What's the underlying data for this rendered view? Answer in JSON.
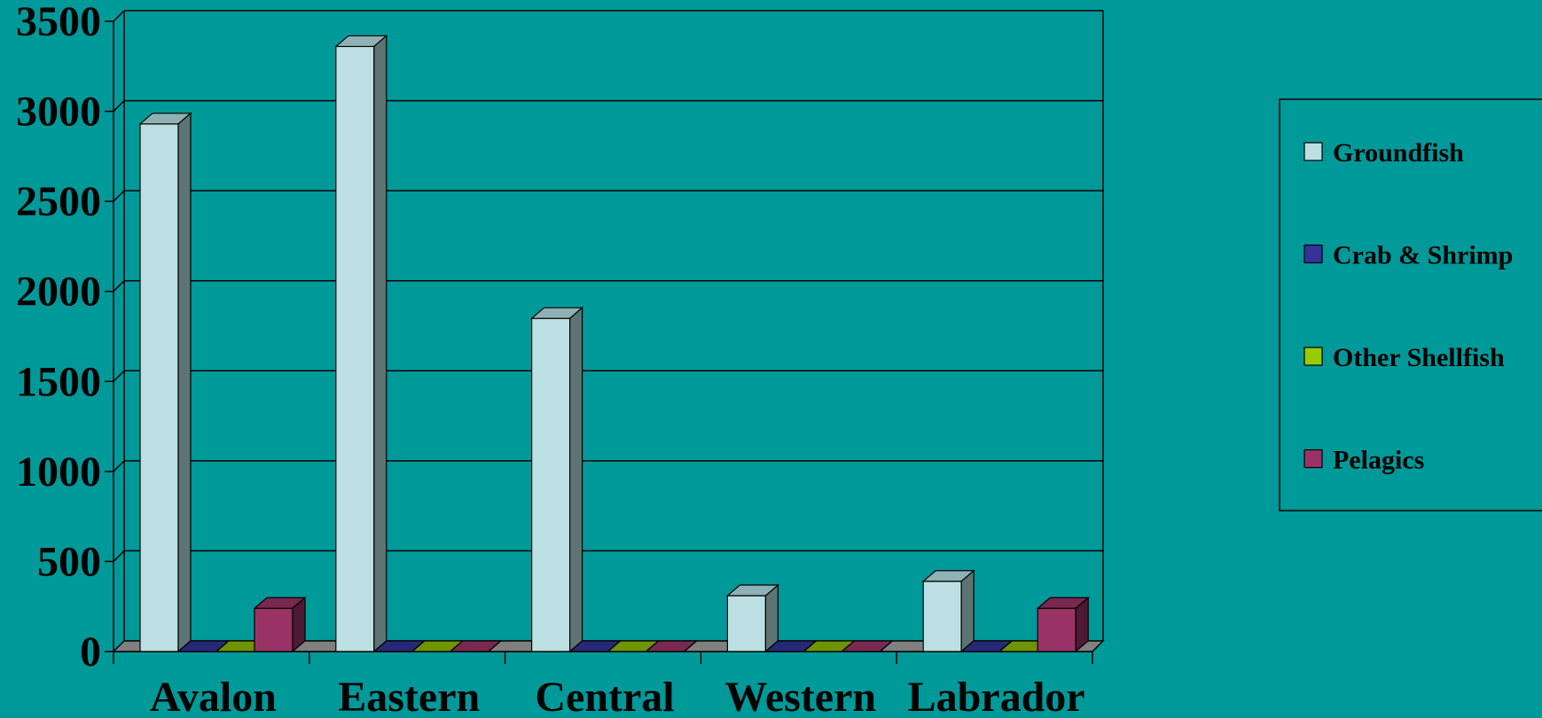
{
  "chart_data": {
    "type": "bar",
    "style": "3d-clustered-column",
    "categories": [
      "Avalon",
      "Eastern",
      "Central",
      "Western",
      "Labrador"
    ],
    "series": [
      {
        "name": "Groundfish",
        "values": [
          2930,
          3360,
          1850,
          310,
          390
        ],
        "color": "#BCE0E2",
        "side_color": "#5E7373",
        "top_color": "#8FB1B3"
      },
      {
        "name": "Crab & Shrimp",
        "values": [
          0,
          0,
          0,
          0,
          0
        ],
        "color": "#333399",
        "side_color": "#1A1A4D",
        "top_color": "#282878"
      },
      {
        "name": "Other Shellfish",
        "values": [
          0,
          0,
          0,
          0,
          0
        ],
        "color": "#99CC00",
        "side_color": "#4D6600",
        "top_color": "#6E9400"
      },
      {
        "name": "Pelagics",
        "values": [
          240,
          0,
          0,
          0,
          240
        ],
        "color": "#993366",
        "side_color": "#4D1A33",
        "top_color": "#7A2850"
      }
    ],
    "yticks": [
      "0",
      "500",
      "1000",
      "1500",
      "2000",
      "2500",
      "3000",
      "3500"
    ],
    "ylim": [
      0,
      3500
    ],
    "grid": true,
    "legend_position": "right",
    "background": "#009999",
    "floor_color": "#808080"
  }
}
